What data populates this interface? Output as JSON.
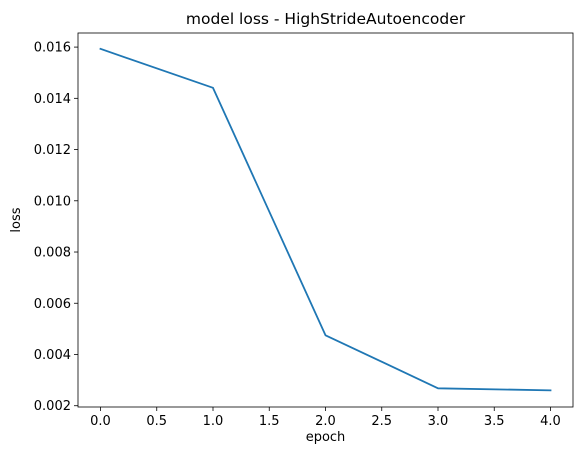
{
  "chart_data": {
    "type": "line",
    "title": "model loss - HighStrideAutoencoder",
    "xlabel": "epoch",
    "ylabel": "loss",
    "xlim": [
      -0.2,
      4.2
    ],
    "ylim": [
      0.00195,
      0.01655
    ],
    "xticks": [
      0.0,
      0.5,
      1.0,
      1.5,
      2.0,
      2.5,
      3.0,
      3.5,
      4.0
    ],
    "xtick_labels": [
      "0.0",
      "0.5",
      "1.0",
      "1.5",
      "2.0",
      "2.5",
      "3.0",
      "3.5",
      "4.0"
    ],
    "yticks": [
      0.002,
      0.004,
      0.006,
      0.008,
      0.01,
      0.012,
      0.014,
      0.016
    ],
    "ytick_labels": [
      "0.002",
      "0.004",
      "0.006",
      "0.008",
      "0.010",
      "0.012",
      "0.014",
      "0.016"
    ],
    "grid": false,
    "series": [
      {
        "color": "#1f77b4",
        "x": [
          0,
          1,
          2,
          3,
          4
        ],
        "y": [
          0.01593,
          0.01441,
          0.00475,
          0.00268,
          0.0026
        ]
      }
    ]
  }
}
